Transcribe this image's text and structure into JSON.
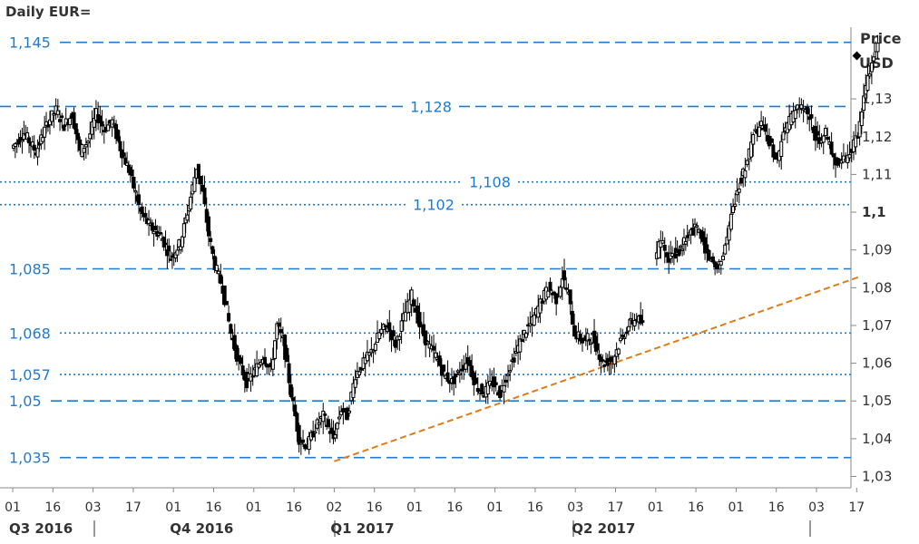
{
  "chart_data": {
    "type": "candlestick",
    "title": "Daily EUR=",
    "unit_label": "Price",
    "currency_label": "USD",
    "ylim": [
      1.027,
      1.149
    ],
    "y_ticks": [
      {
        "value": 1.03,
        "label": "1,03",
        "bold": false
      },
      {
        "value": 1.04,
        "label": "1,04",
        "bold": false
      },
      {
        "value": 1.05,
        "label": "1,05",
        "bold": false
      },
      {
        "value": 1.06,
        "label": "1,06",
        "bold": false
      },
      {
        "value": 1.07,
        "label": "1,07",
        "bold": false
      },
      {
        "value": 1.08,
        "label": "1,08",
        "bold": false
      },
      {
        "value": 1.09,
        "label": "1,09",
        "bold": false
      },
      {
        "value": 1.1,
        "label": "1,1",
        "bold": true
      },
      {
        "value": 1.11,
        "label": "1,11",
        "bold": false
      },
      {
        "value": 1.12,
        "label": "1,12",
        "bold": false
      },
      {
        "value": 1.13,
        "label": "1,13",
        "bold": false
      }
    ],
    "x_ticks": [
      "01",
      "16",
      "03",
      "17",
      "01",
      "16",
      "01",
      "16",
      "02",
      "16",
      "01",
      "16",
      "01",
      "16",
      "03",
      "17",
      "01",
      "16",
      "01",
      "16",
      "03",
      "17"
    ],
    "x_groups": [
      {
        "label": "Q3 2016",
        "start": 0,
        "end": 4
      },
      {
        "label": "Q4 2016",
        "start": 4,
        "end": 8
      },
      {
        "label": "Q1 2017",
        "start": 8,
        "end": 14
      },
      {
        "label": "Q2 2017",
        "start": 14,
        "end": 20
      }
    ],
    "levels": [
      {
        "value": 1.145,
        "label": "1,145",
        "style": "dashed",
        "label_pos": "left"
      },
      {
        "value": 1.128,
        "label": "1,128",
        "style": "dashed",
        "label_pos": "mid"
      },
      {
        "value": 1.108,
        "label": "1,108",
        "style": "dotted",
        "label_pos": "mid"
      },
      {
        "value": 1.102,
        "label": "1,102",
        "style": "dotted",
        "label_pos": "mid"
      },
      {
        "value": 1.085,
        "label": "1,085",
        "style": "dashed",
        "label_pos": "left"
      },
      {
        "value": 1.068,
        "label": "1,068",
        "style": "dotted",
        "label_pos": "left"
      },
      {
        "value": 1.057,
        "label": "1,057",
        "style": "dotted",
        "label_pos": "left"
      },
      {
        "value": 1.05,
        "label": "1,05",
        "style": "dashed",
        "label_pos": "left"
      },
      {
        "value": 1.035,
        "label": "1,035",
        "style": "dashed",
        "label_pos": "left"
      }
    ],
    "trendline": {
      "from": {
        "t": 8.0,
        "y": 1.034
      },
      "to": {
        "t": 21.1,
        "y": 1.083
      }
    },
    "path": [
      [
        0.0,
        1.117
      ],
      [
        0.3,
        1.121
      ],
      [
        0.6,
        1.116
      ],
      [
        0.9,
        1.124
      ],
      [
        1.1,
        1.127
      ],
      [
        1.3,
        1.123
      ],
      [
        1.5,
        1.126
      ],
      [
        1.7,
        1.116
      ],
      [
        1.9,
        1.119
      ],
      [
        2.1,
        1.126
      ],
      [
        2.3,
        1.122
      ],
      [
        2.5,
        1.124
      ],
      [
        2.7,
        1.117
      ],
      [
        2.95,
        1.11
      ],
      [
        3.2,
        1.1
      ],
      [
        3.45,
        1.096
      ],
      [
        3.7,
        1.094
      ],
      [
        3.95,
        1.088
      ],
      [
        4.2,
        1.092
      ],
      [
        4.45,
        1.104
      ],
      [
        4.6,
        1.112
      ],
      [
        4.75,
        1.105
      ],
      [
        4.9,
        1.094
      ],
      [
        5.05,
        1.086
      ],
      [
        5.25,
        1.08
      ],
      [
        5.45,
        1.068
      ],
      [
        5.65,
        1.06
      ],
      [
        5.85,
        1.055
      ],
      [
        6.05,
        1.058
      ],
      [
        6.25,
        1.062
      ],
      [
        6.45,
        1.058
      ],
      [
        6.6,
        1.07
      ],
      [
        6.75,
        1.066
      ],
      [
        6.95,
        1.052
      ],
      [
        7.15,
        1.04
      ],
      [
        7.35,
        1.038
      ],
      [
        7.55,
        1.043
      ],
      [
        7.75,
        1.046
      ],
      [
        8.0,
        1.04
      ],
      [
        8.2,
        1.048
      ],
      [
        8.35,
        1.046
      ],
      [
        8.55,
        1.057
      ],
      [
        8.75,
        1.06
      ],
      [
        8.95,
        1.063
      ],
      [
        9.15,
        1.068
      ],
      [
        9.35,
        1.07
      ],
      [
        9.55,
        1.065
      ],
      [
        9.75,
        1.072
      ],
      [
        9.95,
        1.078
      ],
      [
        10.15,
        1.07
      ],
      [
        10.35,
        1.065
      ],
      [
        10.55,
        1.062
      ],
      [
        10.75,
        1.057
      ],
      [
        10.95,
        1.055
      ],
      [
        11.15,
        1.058
      ],
      [
        11.35,
        1.061
      ],
      [
        11.55,
        1.054
      ],
      [
        11.75,
        1.052
      ],
      [
        11.95,
        1.055
      ],
      [
        12.15,
        1.052
      ],
      [
        12.35,
        1.058
      ],
      [
        12.55,
        1.063
      ],
      [
        12.75,
        1.068
      ],
      [
        12.95,
        1.071
      ],
      [
        13.15,
        1.076
      ],
      [
        13.35,
        1.08
      ],
      [
        13.55,
        1.077
      ],
      [
        13.7,
        1.083
      ],
      [
        13.85,
        1.078
      ],
      [
        14.0,
        1.068
      ],
      [
        14.2,
        1.066
      ],
      [
        14.45,
        1.067
      ],
      [
        14.7,
        1.06
      ],
      [
        14.95,
        1.061
      ],
      [
        15.15,
        1.066
      ],
      [
        15.35,
        1.07
      ],
      [
        15.55,
        1.072
      ],
      [
        15.7,
        1.07
      ]
    ],
    "path2": [
      [
        16.0,
        1.087
      ],
      [
        16.15,
        1.093
      ],
      [
        16.35,
        1.088
      ],
      [
        16.6,
        1.09
      ],
      [
        16.85,
        1.094
      ],
      [
        17.05,
        1.096
      ],
      [
        17.2,
        1.092
      ],
      [
        17.35,
        1.088
      ],
      [
        17.5,
        1.086
      ],
      [
        17.65,
        1.087
      ],
      [
        17.85,
        1.096
      ],
      [
        18.05,
        1.106
      ],
      [
        18.25,
        1.112
      ],
      [
        18.45,
        1.12
      ],
      [
        18.65,
        1.123
      ],
      [
        18.85,
        1.118
      ],
      [
        19.05,
        1.114
      ],
      [
        19.25,
        1.122
      ],
      [
        19.45,
        1.126
      ],
      [
        19.65,
        1.128
      ],
      [
        19.85,
        1.125
      ],
      [
        20.05,
        1.119
      ],
      [
        20.25,
        1.121
      ],
      [
        20.45,
        1.114
      ],
      [
        20.65,
        1.113
      ],
      [
        20.85,
        1.116
      ],
      [
        21.05,
        1.12
      ],
      [
        21.25,
        1.133
      ],
      [
        21.4,
        1.14
      ],
      [
        21.55,
        1.145
      ]
    ]
  }
}
